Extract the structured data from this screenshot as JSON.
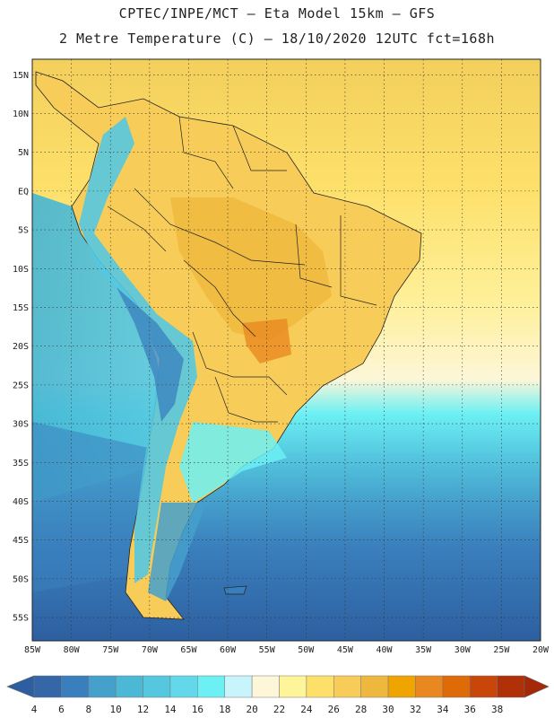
{
  "header": {
    "line1": "CPTEC/INPE/MCT –  Eta Model 15km – GFS",
    "line2": "2 Metre Temperature (C) – 18/10/2020 12UTC fct=168h"
  },
  "map": {
    "lat_labels": [
      "15N",
      "10N",
      "5N",
      "EQ",
      "5S",
      "10S",
      "15S",
      "20S",
      "25S",
      "30S",
      "35S",
      "40S",
      "45S",
      "50S",
      "55S"
    ],
    "lon_labels": [
      "85W",
      "80W",
      "75W",
      "70W",
      "65W",
      "60W",
      "55W",
      "50W",
      "45W",
      "40W",
      "35W",
      "30W",
      "25W",
      "20W"
    ],
    "lat_range": [
      17,
      -58
    ],
    "lon_range": [
      -85,
      -20
    ]
  },
  "colorbar": {
    "labels": [
      "4",
      "6",
      "8",
      "10",
      "12",
      "14",
      "16",
      "18",
      "20",
      "22",
      "24",
      "26",
      "28",
      "30",
      "32",
      "34",
      "36",
      "38"
    ],
    "colors": [
      "#3566a8",
      "#3a7fbd",
      "#45a0cc",
      "#4bb8d6",
      "#55c8e0",
      "#62d8ea",
      "#6cf0f4",
      "#c8f4fb",
      "#fdf6d8",
      "#fef49a",
      "#fde06a",
      "#f7cc58",
      "#eeb83e",
      "#f0a400",
      "#e98820",
      "#de6a08",
      "#c8460a",
      "#b03008"
    ],
    "under_color": "#2d5fa0",
    "over_color": "#a52808"
  }
}
